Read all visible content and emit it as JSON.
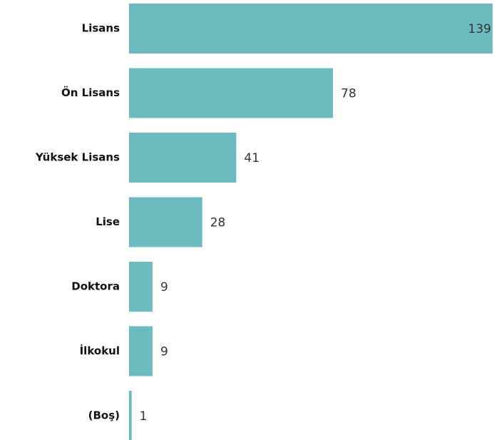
{
  "chart_data": {
    "type": "bar",
    "orientation": "horizontal",
    "categories": [
      "Lisans",
      "Ön Lisans",
      "Yüksek Lisans",
      "Lise",
      "Doktora",
      "İlkokul",
      "(Boş)"
    ],
    "values": [
      139,
      78,
      41,
      28,
      9,
      9,
      1
    ],
    "title": "",
    "xlabel": "",
    "ylabel": "",
    "xlim": [
      0,
      139
    ],
    "grid": false,
    "legend": "none",
    "bar_color": "#6dbbc0",
    "data_labels": true
  }
}
